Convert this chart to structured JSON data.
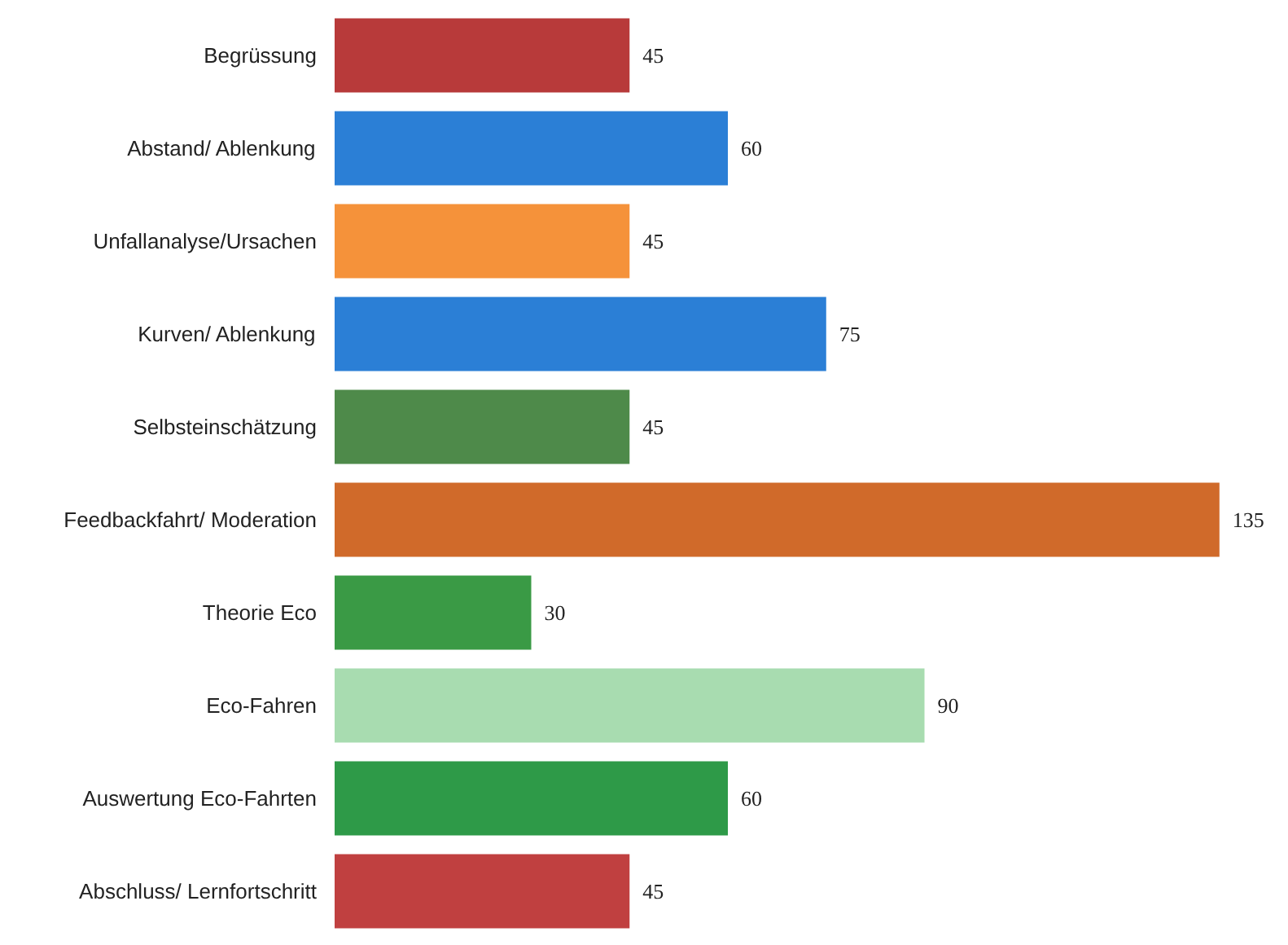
{
  "chart_data": {
    "type": "bar",
    "orientation": "horizontal",
    "data_labels": true,
    "categories": [
      "Begrüssung",
      "Abstand/ Ablenkung",
      "Unfallanalyse/Ursachen",
      "Kurven/ Ablenkung",
      "Selbsteinschätzung",
      "Feedbackfahrt/ Moderation",
      "Theorie Eco",
      "Eco-Fahren",
      "Auswertung Eco-Fahrten",
      "Abschluss/ Lernfortschritt"
    ],
    "values": [
      45,
      60,
      45,
      75,
      45,
      135,
      30,
      90,
      60,
      45
    ],
    "colors": [
      "#b83a3a",
      "#2b7fd6",
      "#f5923a",
      "#2b7fd6",
      "#4e8a4a",
      "#d06a2a",
      "#3a9a45",
      "#a8dcb0",
      "#2e9a48",
      "#c04040"
    ]
  }
}
